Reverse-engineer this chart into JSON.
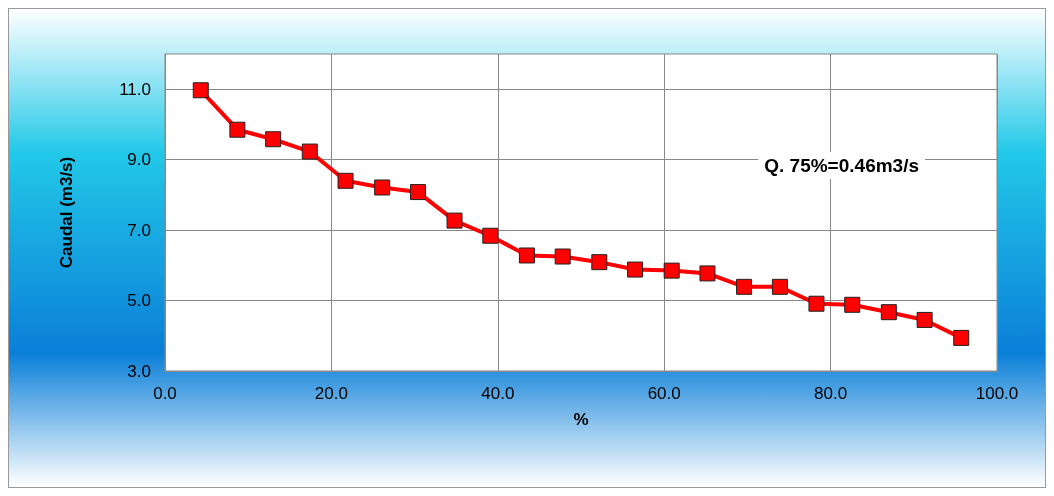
{
  "chart_data": {
    "type": "line",
    "xlabel": "%",
    "ylabel": "Caudal (m3/s)",
    "annotations": [
      "Q. 75%=0.46m3/s"
    ],
    "x": [
      4.3,
      8.7,
      13.0,
      17.4,
      21.7,
      26.1,
      30.4,
      34.8,
      39.1,
      43.5,
      47.8,
      52.2,
      56.5,
      60.9,
      65.2,
      69.6,
      73.9,
      78.3,
      82.6,
      87.0,
      91.3,
      95.7
    ],
    "series": [
      {
        "color": "#ff0000",
        "values": [
          10.97,
          9.85,
          9.58,
          9.23,
          8.4,
          8.21,
          8.08,
          7.27,
          6.84,
          6.28,
          6.25,
          6.09,
          5.88,
          5.85,
          5.77,
          5.39,
          5.39,
          4.91,
          4.88,
          4.67,
          4.45,
          3.94
        ]
      }
    ],
    "xlim": [
      0,
      100
    ],
    "xticks": [
      {
        "value": 0,
        "label": "0.0"
      },
      {
        "value": 20,
        "label": "20.0"
      },
      {
        "value": 40,
        "label": "40.0"
      },
      {
        "value": 60,
        "label": "60.0"
      },
      {
        "value": 80,
        "label": "80.0"
      },
      {
        "value": 100,
        "label": "100.0"
      }
    ],
    "ylim": [
      3,
      12
    ],
    "yticks": [
      {
        "value": 3,
        "label": "3.0"
      },
      {
        "value": 5,
        "label": "5.0"
      },
      {
        "value": 7,
        "label": "7.0"
      },
      {
        "value": 9,
        "label": "9.0"
      },
      {
        "value": 11,
        "label": "11.0"
      }
    ],
    "grid": true,
    "marker": "square",
    "line_style": "solid"
  }
}
